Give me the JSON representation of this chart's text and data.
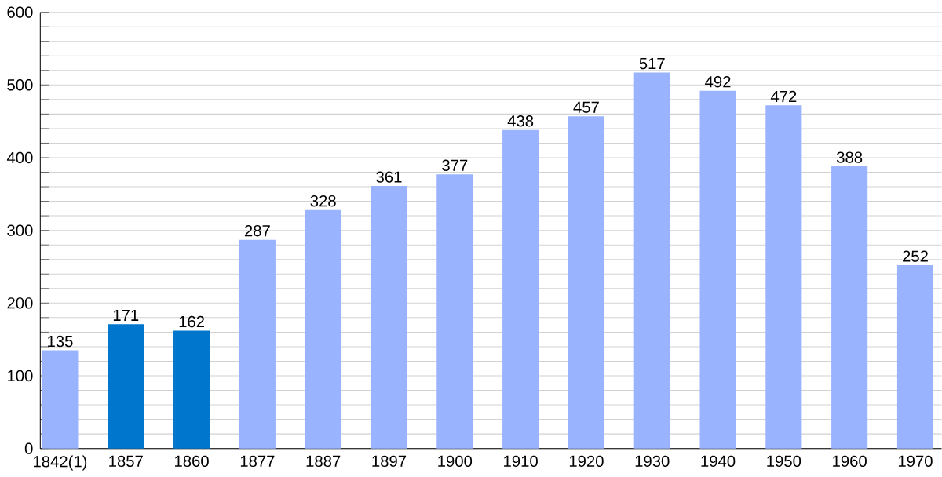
{
  "chart_data": {
    "type": "bar",
    "categories": [
      "1842(1)",
      "1857",
      "1860",
      "1877",
      "1887",
      "1897",
      "1900",
      "1910",
      "1920",
      "1930",
      "1940",
      "1950",
      "1960",
      "1970"
    ],
    "values": [
      135,
      171,
      162,
      287,
      328,
      361,
      377,
      438,
      457,
      517,
      492,
      472,
      388,
      252
    ],
    "colors": [
      "#99b3ff",
      "#0077cc",
      "#0077cc",
      "#99b3ff",
      "#99b3ff",
      "#99b3ff",
      "#99b3ff",
      "#99b3ff",
      "#99b3ff",
      "#99b3ff",
      "#99b3ff",
      "#99b3ff",
      "#99b3ff",
      "#99b3ff"
    ],
    "ylim": [
      0,
      600
    ],
    "yticks": [
      0,
      {
        "value": 20,
        "label": null
      },
      {
        "value": 40,
        "label": null
      },
      {
        "value": 60,
        "label": null
      },
      {
        "value": 80,
        "label": null
      },
      100,
      {
        "value": 120,
        "label": null
      },
      {
        "value": 140,
        "label": null
      },
      {
        "value": 160,
        "label": null
      },
      {
        "value": 180,
        "label": null
      },
      200,
      {
        "value": 220,
        "label": null
      },
      {
        "value": 240,
        "label": null
      },
      {
        "value": 260,
        "label": null
      },
      {
        "value": 280,
        "label": null
      },
      300,
      {
        "value": 320,
        "label": null
      },
      {
        "value": 340,
        "label": null
      },
      {
        "value": 360,
        "label": null
      },
      {
        "value": 380,
        "label": null
      },
      400,
      {
        "value": 420,
        "label": null
      },
      {
        "value": 440,
        "label": null
      },
      {
        "value": 460,
        "label": null
      },
      {
        "value": 480,
        "label": null
      },
      500,
      {
        "value": 520,
        "label": null
      },
      {
        "value": 540,
        "label": null
      },
      {
        "value": 560,
        "label": null
      },
      {
        "value": 580,
        "label": null
      },
      600
    ],
    "grid": "y",
    "data_labels": true
  }
}
